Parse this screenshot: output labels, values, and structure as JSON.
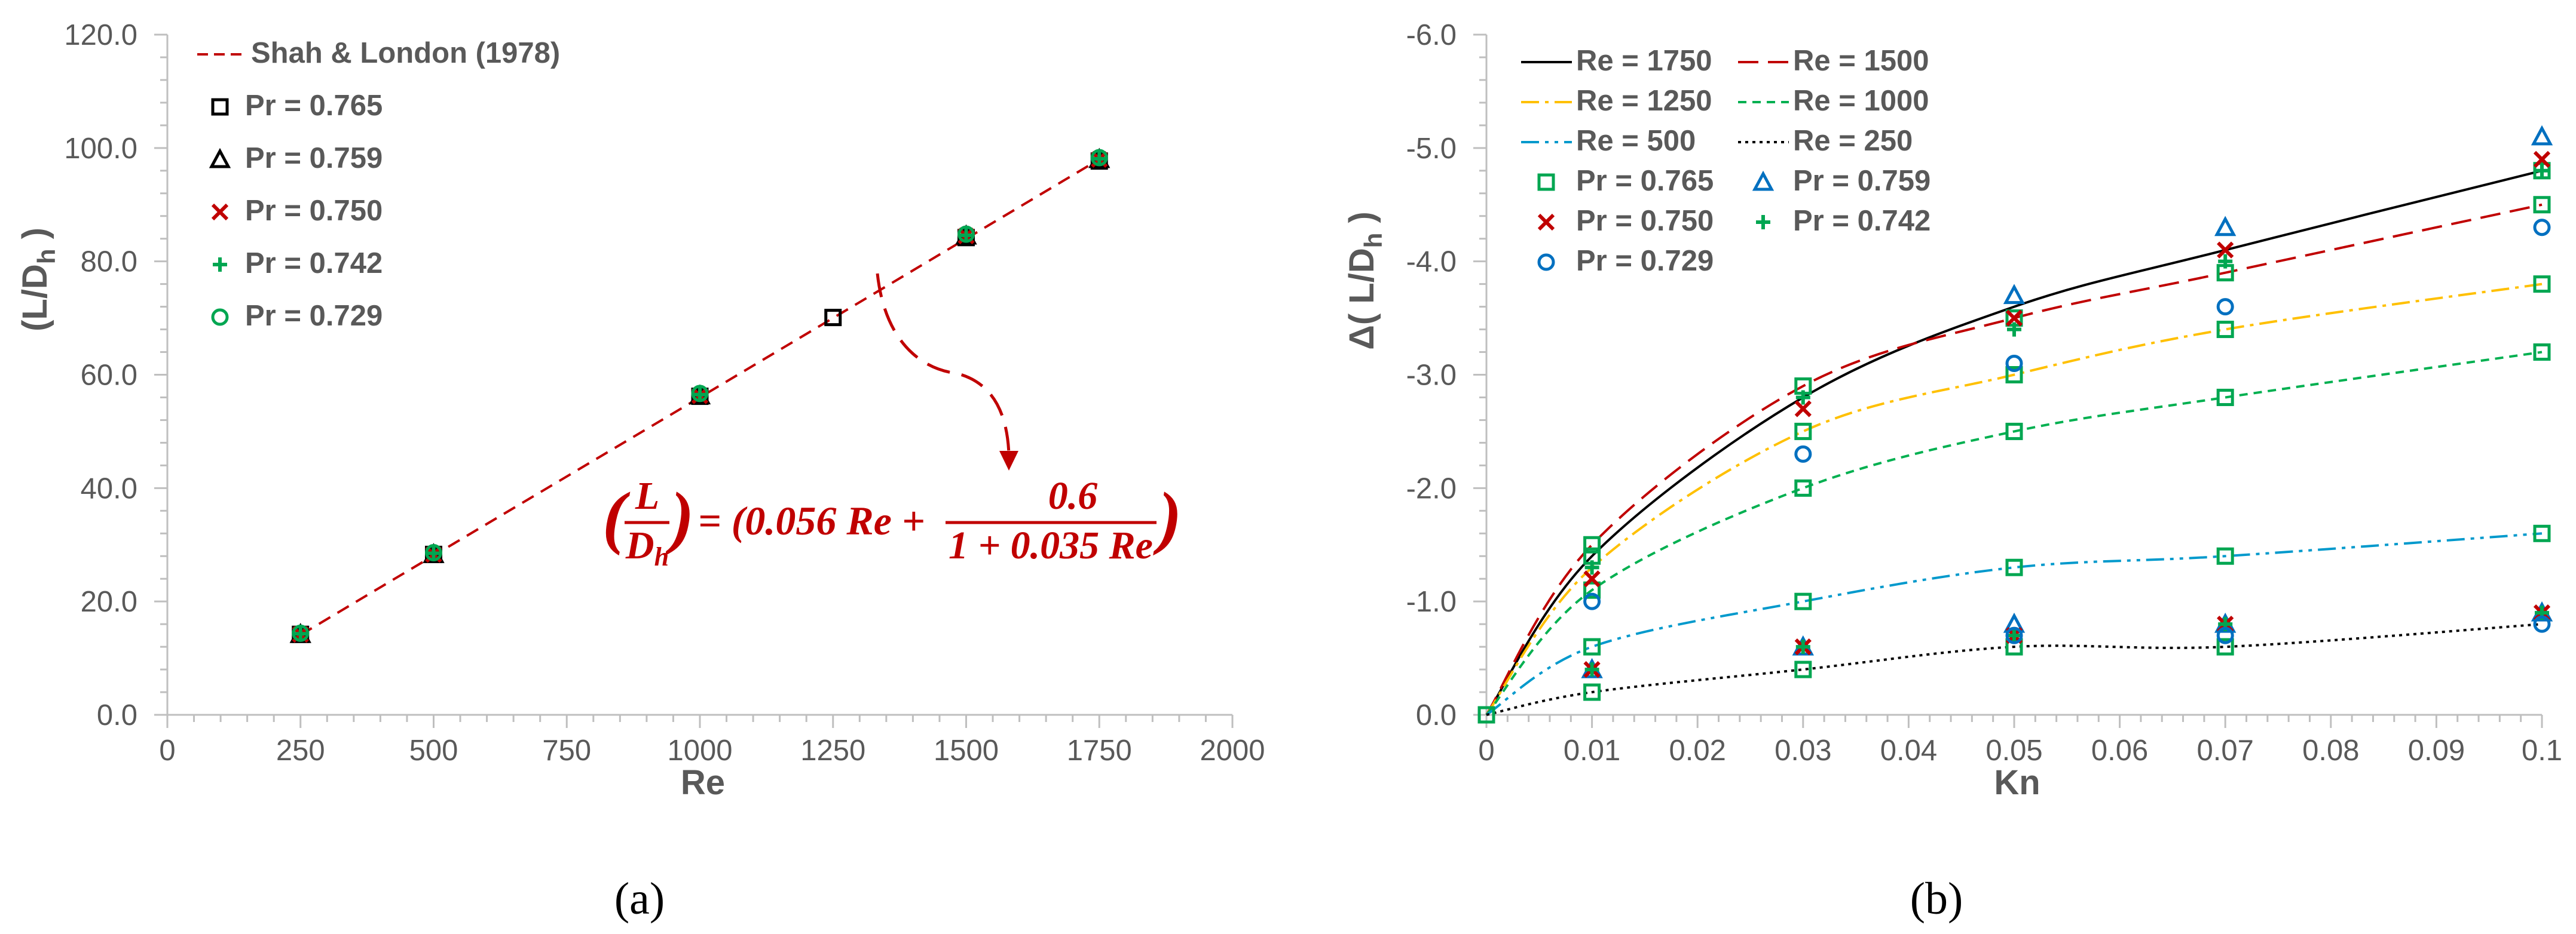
{
  "panels": [
    {
      "caption": "(a)",
      "chart_data": {
        "type": "line+scatter",
        "xlabel": "Re",
        "ylabel": "(L/Dh)",
        "xlim": [
          0,
          2000
        ],
        "ylim": [
          0,
          120
        ],
        "xticks": [
          0,
          250,
          500,
          750,
          1000,
          1250,
          1500,
          1750,
          2000
        ],
        "xtick_labels": [
          "0",
          "250",
          "500",
          "750",
          "1000",
          "1250",
          "1500",
          "1750",
          "2000"
        ],
        "yticks": [
          0,
          20,
          40,
          60,
          80,
          100,
          120
        ],
        "ytick_labels": [
          "0.0",
          "20.0",
          "40.0",
          "60.0",
          "80.0",
          "100.0",
          "120.0"
        ],
        "series": [
          {
            "name": "Shah & London (1978)",
            "kind": "line",
            "color": "#c00000",
            "dash": "dashed",
            "x": [
              250,
              500,
              1000,
              1250,
              1500,
              1750
            ],
            "y": [
              14.1,
              28.1,
              56.0,
              70.0,
              84.0,
              98.0
            ]
          },
          {
            "name": "Pr = 0.765",
            "kind": "marker",
            "marker": "square",
            "color": "#000000",
            "x": [
              250,
              500,
              1000,
              1250,
              1500,
              1750
            ],
            "y": [
              14.2,
              28.3,
              56.2,
              70.1,
              84.2,
              97.7
            ]
          },
          {
            "name": "Pr = 0.759",
            "kind": "marker",
            "marker": "triangle",
            "color": "#000000",
            "x": [
              250,
              500,
              1000,
              1500,
              1750
            ],
            "y": [
              14.2,
              28.3,
              56.3,
              84.5,
              98.0
            ]
          },
          {
            "name": "Pr = 0.750",
            "kind": "marker",
            "marker": "x",
            "color": "#c00000",
            "x": [
              250,
              500,
              1000,
              1500,
              1750
            ],
            "y": [
              14.2,
              28.3,
              56.3,
              84.5,
              98.0
            ]
          },
          {
            "name": "Pr = 0.742",
            "kind": "marker",
            "marker": "plus",
            "color": "#00a651",
            "x": [
              250,
              500,
              1000,
              1500,
              1750
            ],
            "y": [
              14.3,
              28.5,
              56.5,
              84.6,
              98.1
            ]
          },
          {
            "name": "Pr = 0.729",
            "kind": "marker",
            "marker": "circle",
            "color": "#00a651",
            "x": [
              250,
              500,
              1000,
              1500,
              1750
            ],
            "y": [
              14.4,
              28.6,
              56.7,
              84.8,
              98.3
            ]
          }
        ],
        "annotation": {
          "lhs_num": "L",
          "lhs_den": "Dh",
          "middle": "= (0.056 Re +",
          "frac_num": "0.6",
          "frac_den": "1 + 0.035 Re",
          "close": ")"
        }
      }
    },
    {
      "caption": "(b)",
      "chart_data": {
        "type": "line+scatter",
        "xlabel": "Kn",
        "ylabel": "Δ( L/Dh )",
        "xlim": [
          0,
          0.1
        ],
        "ylim": [
          0,
          -6
        ],
        "y_reversed": true,
        "xticks": [
          0,
          0.01,
          0.02,
          0.03,
          0.04,
          0.05,
          0.06,
          0.07,
          0.08,
          0.09,
          0.1
        ],
        "xtick_labels": [
          "0",
          "0.01",
          "0.02",
          "0.03",
          "0.04",
          "0.05",
          "0.06",
          "0.07",
          "0.08",
          "0.09",
          "0.1"
        ],
        "yticks": [
          0,
          -1,
          -2,
          -3,
          -4,
          -5,
          -6
        ],
        "ytick_labels": [
          "0.0",
          "-1.0",
          "-2.0",
          "-3.0",
          "-4.0",
          "-5.0",
          "-6.0"
        ],
        "lines": [
          {
            "name": "Re = 1750",
            "color": "#000000",
            "dash": "solid",
            "x": [
              0,
              0.01,
              0.03,
              0.05,
              0.07,
              0.1
            ],
            "y": [
              0,
              -1.4,
              -2.8,
              -3.6,
              -4.1,
              -4.8
            ]
          },
          {
            "name": "Re = 1500",
            "color": "#c00000",
            "dash": "longdash",
            "x": [
              0,
              0.01,
              0.03,
              0.05,
              0.07,
              0.1
            ],
            "y": [
              0,
              -1.5,
              -2.9,
              -3.5,
              -3.9,
              -4.5
            ]
          },
          {
            "name": "Re = 1250",
            "color": "#ffc000",
            "dash": "dashdot",
            "x": [
              0,
              0.01,
              0.03,
              0.05,
              0.07,
              0.1
            ],
            "y": [
              0,
              -1.3,
              -2.5,
              -3.0,
              -3.4,
              -3.8
            ]
          },
          {
            "name": "Re = 1000",
            "color": "#00b050",
            "dash": "shortdash",
            "x": [
              0,
              0.01,
              0.03,
              0.05,
              0.07,
              0.1
            ],
            "y": [
              0,
              -1.1,
              -2.0,
              -2.5,
              -2.8,
              -3.2
            ]
          },
          {
            "name": "Re = 500",
            "color": "#0099cc",
            "dash": "dashdotdot",
            "x": [
              0,
              0.01,
              0.03,
              0.05,
              0.07,
              0.1
            ],
            "y": [
              0,
              -0.6,
              -1.0,
              -1.3,
              -1.4,
              -1.6
            ]
          },
          {
            "name": "Re = 250",
            "color": "#000000",
            "dash": "dotted",
            "x": [
              0,
              0.01,
              0.03,
              0.05,
              0.07,
              0.1
            ],
            "y": [
              0,
              -0.2,
              -0.4,
              -0.6,
              -0.6,
              -0.8
            ]
          }
        ],
        "markers": [
          {
            "name": "Pr = 0.765",
            "marker": "square",
            "color": "#00a651",
            "x": [
              0,
              0.01,
              0.01,
              0.01,
              0.01,
              0.01,
              0.03,
              0.03,
              0.03,
              0.03,
              0.03,
              0.05,
              0.05,
              0.05,
              0.05,
              0.05,
              0.07,
              0.07,
              0.07,
              0.07,
              0.07,
              0.1,
              0.1,
              0.1,
              0.1,
              0.1
            ],
            "y": [
              0,
              -1.5,
              -1.4,
              -1.1,
              -0.6,
              -0.2,
              -2.9,
              -2.5,
              -2.0,
              -1.0,
              -0.4,
              -3.5,
              -3.0,
              -2.5,
              -1.3,
              -0.6,
              -3.9,
              -3.4,
              -2.8,
              -1.4,
              -0.6,
              -4.8,
              -4.5,
              -3.8,
              -3.2,
              -1.6
            ]
          },
          {
            "name": "Pr = 0.759",
            "marker": "triangle",
            "color": "#0070c0",
            "x": [
              0.01,
              0.03,
              0.05,
              0.05,
              0.07,
              0.07,
              0.1,
              0.1
            ],
            "y": [
              -0.4,
              -0.6,
              -3.7,
              -0.8,
              -4.3,
              -0.8,
              -5.1,
              -0.9
            ]
          },
          {
            "name": "Pr = 0.750",
            "marker": "x",
            "color": "#c00000",
            "x": [
              0.01,
              0.01,
              0.03,
              0.03,
              0.05,
              0.05,
              0.07,
              0.07,
              0.1,
              0.1
            ],
            "y": [
              -1.2,
              -0.4,
              -2.7,
              -0.6,
              -3.5,
              -0.7,
              -4.1,
              -0.8,
              -4.9,
              -0.9
            ]
          },
          {
            "name": "Pr = 0.742",
            "marker": "plus",
            "color": "#00a651",
            "x": [
              0.01,
              0.01,
              0.03,
              0.03,
              0.05,
              0.05,
              0.07,
              0.07,
              0.1,
              0.1
            ],
            "y": [
              -1.3,
              -0.4,
              -2.8,
              -0.6,
              -3.4,
              -0.7,
              -4.0,
              -0.8,
              -4.8,
              -0.9
            ]
          },
          {
            "name": "Pr = 0.729",
            "marker": "circle",
            "color": "#0070c0",
            "x": [
              0.01,
              0.03,
              0.05,
              0.05,
              0.07,
              0.07,
              0.1,
              0.1
            ],
            "y": [
              -1.0,
              -2.3,
              -3.1,
              -0.7,
              -3.6,
              -0.7,
              -4.3,
              -0.8
            ]
          }
        ]
      }
    }
  ]
}
